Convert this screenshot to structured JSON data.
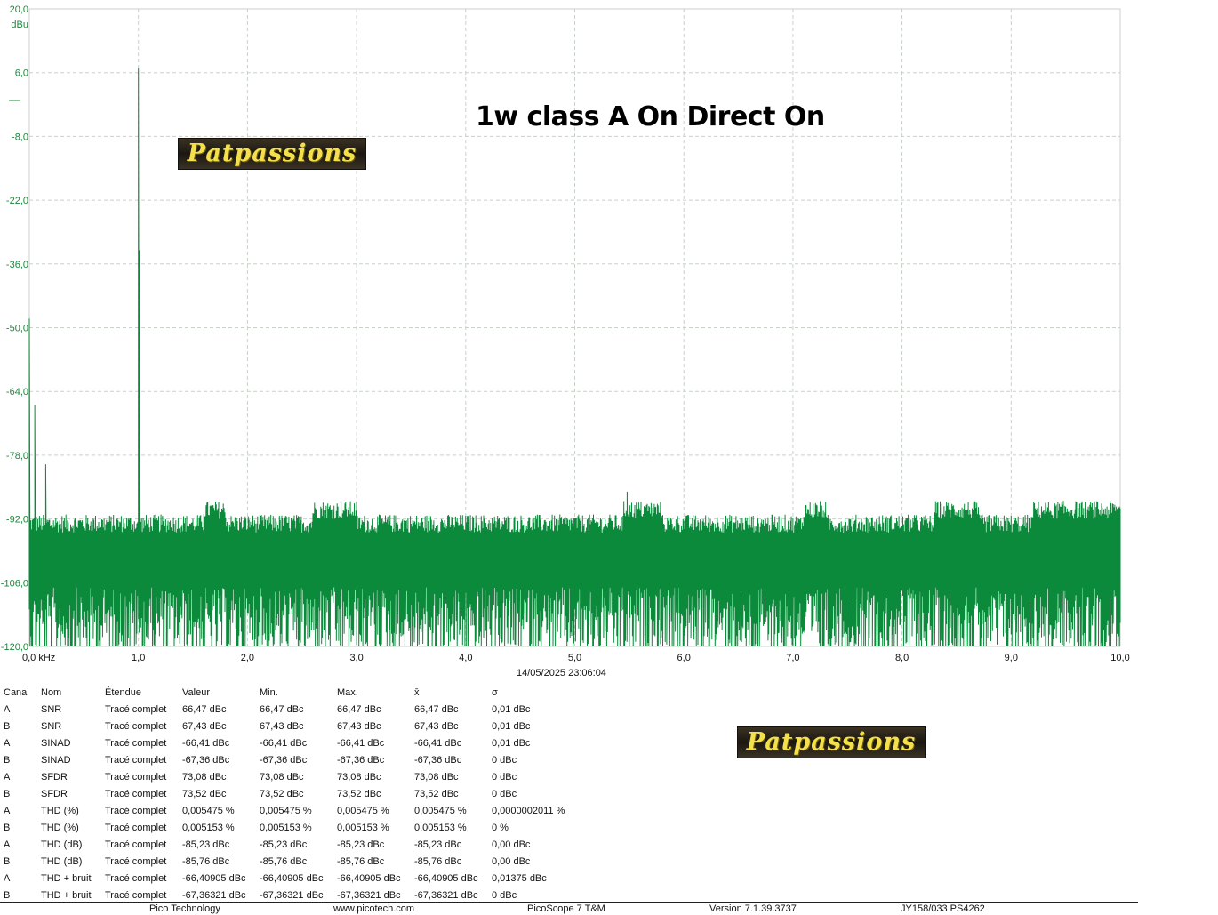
{
  "chart_data": {
    "type": "line",
    "title": "1w class A On Direct On",
    "xlabel": "kHz",
    "ylabel": "dBu",
    "x_unit_label": "0,0 kHz",
    "xlim": [
      0,
      10
    ],
    "ylim": [
      -120,
      20
    ],
    "x_ticks": [
      "0,0 kHz",
      "1,0",
      "2,0",
      "3,0",
      "4,0",
      "5,0",
      "6,0",
      "7,0",
      "8,0",
      "9,0",
      "10,0"
    ],
    "y_ticks": [
      "20,0",
      "6,0",
      "-8,0",
      "-22,0",
      "-36,0",
      "-50,0",
      "-64,0",
      "-78,0",
      "-92,0",
      "-106,0",
      "-120,0"
    ],
    "y_tick_values": [
      20,
      6,
      -8,
      -22,
      -36,
      -50,
      -64,
      -78,
      -92,
      -106,
      -120
    ],
    "grid": true,
    "series": [
      {
        "color": "#0a8a3a",
        "noise_floor_dBu": -101,
        "noise_hump_regions_kHz": [
          [
            1.6,
            1.8
          ],
          [
            2.6,
            3.0
          ],
          [
            5.45,
            5.8
          ],
          [
            7.1,
            7.3
          ],
          [
            8.3,
            8.7
          ],
          [
            9.2,
            10.0
          ]
        ],
        "peaks": [
          {
            "x": 0.0,
            "y": -48
          },
          {
            "x": 0.05,
            "y": -67
          },
          {
            "x": 0.15,
            "y": -80
          },
          {
            "x": 1.0,
            "y": 7
          },
          {
            "x": 1.01,
            "y": -33
          },
          {
            "x": 5.48,
            "y": -86
          }
        ]
      }
    ]
  },
  "watermark": "Patpassions",
  "timestamp": "14/05/2025 23:06:04",
  "measurements": {
    "headers": [
      "Canal",
      "Nom",
      "Étendue",
      "Valeur",
      "Min.",
      "Max.",
      "x̄",
      "σ"
    ],
    "rows": [
      [
        "A",
        "SNR",
        "Tracé complet",
        "66,47 dBc",
        "66,47 dBc",
        "66,47 dBc",
        "66,47 dBc",
        "0,01 dBc"
      ],
      [
        "B",
        "SNR",
        "Tracé complet",
        "67,43 dBc",
        "67,43 dBc",
        "67,43 dBc",
        "67,43 dBc",
        "0,01 dBc"
      ],
      [
        "A",
        "SINAD",
        "Tracé complet",
        "-66,41 dBc",
        "-66,41 dBc",
        "-66,41 dBc",
        "-66,41 dBc",
        "0,01 dBc"
      ],
      [
        "B",
        "SINAD",
        "Tracé complet",
        "-67,36 dBc",
        "-67,36 dBc",
        "-67,36 dBc",
        "-67,36 dBc",
        "0 dBc"
      ],
      [
        "A",
        "SFDR",
        "Tracé complet",
        "73,08 dBc",
        "73,08 dBc",
        "73,08 dBc",
        "73,08 dBc",
        "0 dBc"
      ],
      [
        "B",
        "SFDR",
        "Tracé complet",
        "73,52 dBc",
        "73,52 dBc",
        "73,52 dBc",
        "73,52 dBc",
        "0 dBc"
      ],
      [
        "A",
        "THD (%)",
        "Tracé complet",
        "0,005475 %",
        "0,005475 %",
        "0,005475 %",
        "0,005475 %",
        "0,0000002011 %"
      ],
      [
        "B",
        "THD (%)",
        "Tracé complet",
        "0,005153 %",
        "0,005153 %",
        "0,005153 %",
        "0,005153 %",
        "0 %"
      ],
      [
        "A",
        "THD (dB)",
        "Tracé complet",
        "-85,23 dBc",
        "-85,23 dBc",
        "-85,23 dBc",
        "-85,23 dBc",
        "0,00 dBc"
      ],
      [
        "B",
        "THD (dB)",
        "Tracé complet",
        "-85,76 dBc",
        "-85,76 dBc",
        "-85,76 dBc",
        "-85,76 dBc",
        "0,00 dBc"
      ],
      [
        "A",
        "THD + bruit",
        "Tracé complet",
        "-66,40905 dBc",
        "-66,40905 dBc",
        "-66,40905 dBc",
        "-66,40905 dBc",
        "0,01375 dBc"
      ],
      [
        "B",
        "THD + bruit",
        "Tracé complet",
        "-67,36321 dBc",
        "-67,36321 dBc",
        "-67,36321 dBc",
        "-67,36321 dBc",
        "0 dBc"
      ]
    ]
  },
  "footer": {
    "company": "Pico Technology",
    "website": "www.picotech.com",
    "product": "PicoScope 7 T&M",
    "version": "Version 7.1.39.3737",
    "device": "JY158/033 PS4262"
  }
}
